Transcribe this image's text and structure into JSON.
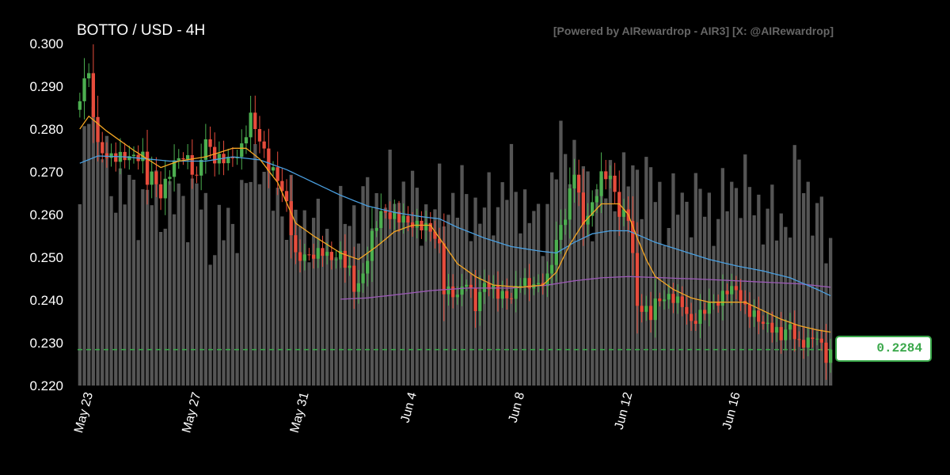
{
  "header": {
    "title": "BOTTO / USD - 4H",
    "credit": "[Powered by AIRewardrop - AIR3] [X: @AIRewardrop]"
  },
  "last_price_label": "0.2284",
  "colors": {
    "background": "#000000",
    "up": "#4caf50",
    "down": "#e74c3c",
    "volume": "#555555",
    "ma_fast": "#f5a623",
    "ma_mid": "#4a9fe0",
    "ma_slow": "#9b59b6",
    "price_line": "#3aa84a"
  },
  "chart_data": {
    "type": "candlestick",
    "title": "BOTTO / USD - 4H",
    "ylim": [
      0.22,
      0.3
    ],
    "yticks": [
      "0.220",
      "0.230",
      "0.240",
      "0.250",
      "0.260",
      "0.270",
      "0.280",
      "0.290",
      "0.300"
    ],
    "xticks": [
      {
        "label": "May 23",
        "index": 2
      },
      {
        "label": "May 27",
        "index": 26
      },
      {
        "label": "May 31",
        "index": 50
      },
      {
        "label": "Jun 4",
        "index": 74
      },
      {
        "label": "Jun 8",
        "index": 98
      },
      {
        "label": "Jun 12",
        "index": 122
      },
      {
        "label": "Jun 16",
        "index": 146
      }
    ],
    "last_price": 0.2284,
    "grid": false,
    "series": [
      {
        "name": "candles",
        "anchors": [
          [
            0,
            0.2865
          ],
          [
            1,
            0.2925
          ],
          [
            2,
            0.292
          ],
          [
            3,
            0.284
          ],
          [
            4,
            0.276
          ],
          [
            6,
            0.2735
          ],
          [
            10,
            0.2735
          ],
          [
            14,
            0.2735
          ],
          [
            15,
            0.268
          ],
          [
            16,
            0.2695
          ],
          [
            18,
            0.2645
          ],
          [
            20,
            0.27
          ],
          [
            22,
            0.2735
          ],
          [
            24,
            0.273
          ],
          [
            26,
            0.268
          ],
          [
            27,
            0.2735
          ],
          [
            28,
            0.2775
          ],
          [
            30,
            0.273
          ],
          [
            34,
            0.273
          ],
          [
            36,
            0.2755
          ],
          [
            38,
            0.283
          ],
          [
            40,
            0.2775
          ],
          [
            42,
            0.2715
          ],
          [
            44,
            0.2685
          ],
          [
            46,
            0.2625
          ],
          [
            48,
            0.25
          ],
          [
            52,
            0.2505
          ],
          [
            54,
            0.2515
          ],
          [
            56,
            0.2495
          ],
          [
            58,
            0.2505
          ],
          [
            60,
            0.247
          ],
          [
            61,
            0.2425
          ],
          [
            63,
            0.2455
          ],
          [
            65,
            0.255
          ],
          [
            67,
            0.2605
          ],
          [
            70,
            0.2595
          ],
          [
            72,
            0.259
          ],
          [
            74,
            0.2575
          ],
          [
            76,
            0.2575
          ],
          [
            78,
            0.2565
          ],
          [
            80,
            0.2525
          ],
          [
            81,
            0.2425
          ],
          [
            84,
            0.241
          ],
          [
            86,
            0.2445
          ],
          [
            88,
            0.2385
          ],
          [
            90,
            0.244
          ],
          [
            93,
            0.2415
          ],
          [
            96,
            0.2405
          ],
          [
            98,
            0.2445
          ],
          [
            100,
            0.2435
          ],
          [
            102,
            0.2435
          ],
          [
            104,
            0.245
          ],
          [
            106,
            0.2535
          ],
          [
            107,
            0.2575
          ],
          [
            108,
            0.2595
          ],
          [
            110,
            0.2705
          ],
          [
            112,
            0.258
          ],
          [
            114,
            0.262
          ],
          [
            116,
            0.269
          ],
          [
            118,
            0.269
          ],
          [
            120,
            0.2605
          ],
          [
            122,
            0.2595
          ],
          [
            123,
            0.2505
          ],
          [
            124,
            0.2385
          ],
          [
            126,
            0.2375
          ],
          [
            127,
            0.2365
          ],
          [
            128,
            0.2395
          ],
          [
            130,
            0.2405
          ],
          [
            132,
            0.2405
          ],
          [
            134,
            0.239
          ],
          [
            136,
            0.2345
          ],
          [
            138,
            0.2365
          ],
          [
            140,
            0.239
          ],
          [
            142,
            0.2395
          ],
          [
            144,
            0.2425
          ],
          [
            146,
            0.2425
          ],
          [
            148,
            0.238
          ],
          [
            150,
            0.2365
          ],
          [
            152,
            0.2345
          ],
          [
            154,
            0.2335
          ],
          [
            156,
            0.2315
          ],
          [
            158,
            0.234
          ],
          [
            160,
            0.2295
          ],
          [
            162,
            0.2305
          ],
          [
            164,
            0.2315
          ],
          [
            166,
            0.2265
          ],
          [
            167,
            0.2284
          ]
        ]
      },
      {
        "name": "ma_fast",
        "anchors": [
          [
            0,
            0.28
          ],
          [
            2,
            0.283
          ],
          [
            6,
            0.2795
          ],
          [
            12,
            0.275
          ],
          [
            18,
            0.271
          ],
          [
            22,
            0.2725
          ],
          [
            28,
            0.2735
          ],
          [
            34,
            0.2755
          ],
          [
            37,
            0.2755
          ],
          [
            40,
            0.273
          ],
          [
            44,
            0.2675
          ],
          [
            48,
            0.258
          ],
          [
            52,
            0.255
          ],
          [
            58,
            0.251
          ],
          [
            62,
            0.2495
          ],
          [
            66,
            0.2525
          ],
          [
            70,
            0.256
          ],
          [
            74,
            0.2575
          ],
          [
            78,
            0.2575
          ],
          [
            80,
            0.2545
          ],
          [
            84,
            0.2485
          ],
          [
            88,
            0.2455
          ],
          [
            92,
            0.2435
          ],
          [
            98,
            0.243
          ],
          [
            103,
            0.2435
          ],
          [
            106,
            0.2465
          ],
          [
            109,
            0.253
          ],
          [
            112,
            0.258
          ],
          [
            116,
            0.2625
          ],
          [
            120,
            0.2625
          ],
          [
            122,
            0.26
          ],
          [
            124,
            0.2545
          ],
          [
            126,
            0.2495
          ],
          [
            128,
            0.2455
          ],
          [
            132,
            0.2425
          ],
          [
            136,
            0.2405
          ],
          [
            140,
            0.2395
          ],
          [
            144,
            0.2395
          ],
          [
            148,
            0.2395
          ],
          [
            152,
            0.2375
          ],
          [
            156,
            0.2355
          ],
          [
            160,
            0.234
          ],
          [
            164,
            0.233
          ],
          [
            167,
            0.2325
          ]
        ]
      },
      {
        "name": "ma_mid",
        "anchors": [
          [
            0,
            0.272
          ],
          [
            4,
            0.2737
          ],
          [
            10,
            0.2735
          ],
          [
            20,
            0.2725
          ],
          [
            28,
            0.2725
          ],
          [
            34,
            0.2735
          ],
          [
            40,
            0.2728
          ],
          [
            46,
            0.2705
          ],
          [
            52,
            0.2675
          ],
          [
            58,
            0.2645
          ],
          [
            64,
            0.262
          ],
          [
            70,
            0.2605
          ],
          [
            76,
            0.2595
          ],
          [
            80,
            0.259
          ],
          [
            84,
            0.257
          ],
          [
            90,
            0.2545
          ],
          [
            96,
            0.2525
          ],
          [
            102,
            0.2515
          ],
          [
            106,
            0.251
          ],
          [
            110,
            0.2535
          ],
          [
            114,
            0.2555
          ],
          [
            118,
            0.2562
          ],
          [
            122,
            0.2562
          ],
          [
            124,
            0.2553
          ],
          [
            128,
            0.2535
          ],
          [
            134,
            0.2515
          ],
          [
            140,
            0.2495
          ],
          [
            146,
            0.248
          ],
          [
            152,
            0.2468
          ],
          [
            158,
            0.2452
          ],
          [
            164,
            0.2425
          ],
          [
            167,
            0.241
          ]
        ]
      },
      {
        "name": "ma_slow",
        "anchors": [
          [
            58,
            0.2402
          ],
          [
            64,
            0.2405
          ],
          [
            70,
            0.2412
          ],
          [
            78,
            0.2422
          ],
          [
            86,
            0.2428
          ],
          [
            96,
            0.2428
          ],
          [
            104,
            0.2435
          ],
          [
            110,
            0.2445
          ],
          [
            116,
            0.2452
          ],
          [
            122,
            0.2455
          ],
          [
            130,
            0.2452
          ],
          [
            140,
            0.2448
          ],
          [
            150,
            0.2443
          ],
          [
            160,
            0.2438
          ],
          [
            167,
            0.243
          ]
        ]
      },
      {
        "name": "volume",
        "anchors": [
          [
            0,
            0.48
          ],
          [
            2,
            0.88
          ],
          [
            6,
            0.62
          ],
          [
            10,
            0.56
          ],
          [
            14,
            0.55
          ],
          [
            20,
            0.52
          ],
          [
            26,
            0.56
          ],
          [
            30,
            0.42
          ],
          [
            36,
            0.52
          ],
          [
            40,
            0.7
          ],
          [
            42,
            0.56
          ],
          [
            50,
            0.48
          ],
          [
            56,
            0.42
          ],
          [
            60,
            0.5
          ],
          [
            66,
            0.54
          ],
          [
            72,
            0.58
          ],
          [
            76,
            0.5
          ],
          [
            84,
            0.55
          ],
          [
            90,
            0.5
          ],
          [
            96,
            0.6
          ],
          [
            102,
            0.45
          ],
          [
            108,
            0.72
          ],
          [
            110,
            0.65
          ],
          [
            114,
            0.55
          ],
          [
            122,
            0.6
          ],
          [
            126,
            0.62
          ],
          [
            130,
            0.5
          ],
          [
            136,
            0.55
          ],
          [
            142,
            0.5
          ],
          [
            146,
            0.6
          ],
          [
            150,
            0.54
          ],
          [
            154,
            0.48
          ],
          [
            158,
            0.5
          ],
          [
            160,
            0.66
          ],
          [
            164,
            0.48
          ],
          [
            167,
            0.42
          ]
        ]
      }
    ]
  }
}
